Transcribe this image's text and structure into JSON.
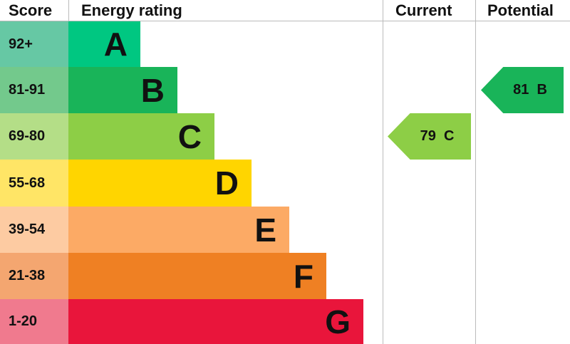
{
  "chart_data": {
    "type": "bar",
    "headers": {
      "score": "Score",
      "rating": "Energy rating",
      "current": "Current",
      "potential": "Potential"
    },
    "bands": [
      {
        "score": "92+",
        "letter": "A",
        "color": "#00c781",
        "tint": "#66c8a4"
      },
      {
        "score": "81-91",
        "letter": "B",
        "color": "#19b459",
        "tint": "#73c98c"
      },
      {
        "score": "69-80",
        "letter": "C",
        "color": "#8dce46",
        "tint": "#b4de87"
      },
      {
        "score": "55-68",
        "letter": "D",
        "color": "#ffd500",
        "tint": "#ffe566"
      },
      {
        "score": "39-54",
        "letter": "E",
        "color": "#fcaa65",
        "tint": "#fdcba2"
      },
      {
        "score": "21-38",
        "letter": "F",
        "color": "#ef8023",
        "tint": "#f4a670"
      },
      {
        "score": "1-20",
        "letter": "G",
        "color": "#e9153b",
        "tint": "#f07a8e"
      }
    ],
    "current": {
      "value": 79,
      "letter": "C",
      "label": "79  C",
      "color": "#8dce46"
    },
    "potential": {
      "value": 81,
      "letter": "B",
      "label": "81  B",
      "color": "#19b459"
    }
  }
}
